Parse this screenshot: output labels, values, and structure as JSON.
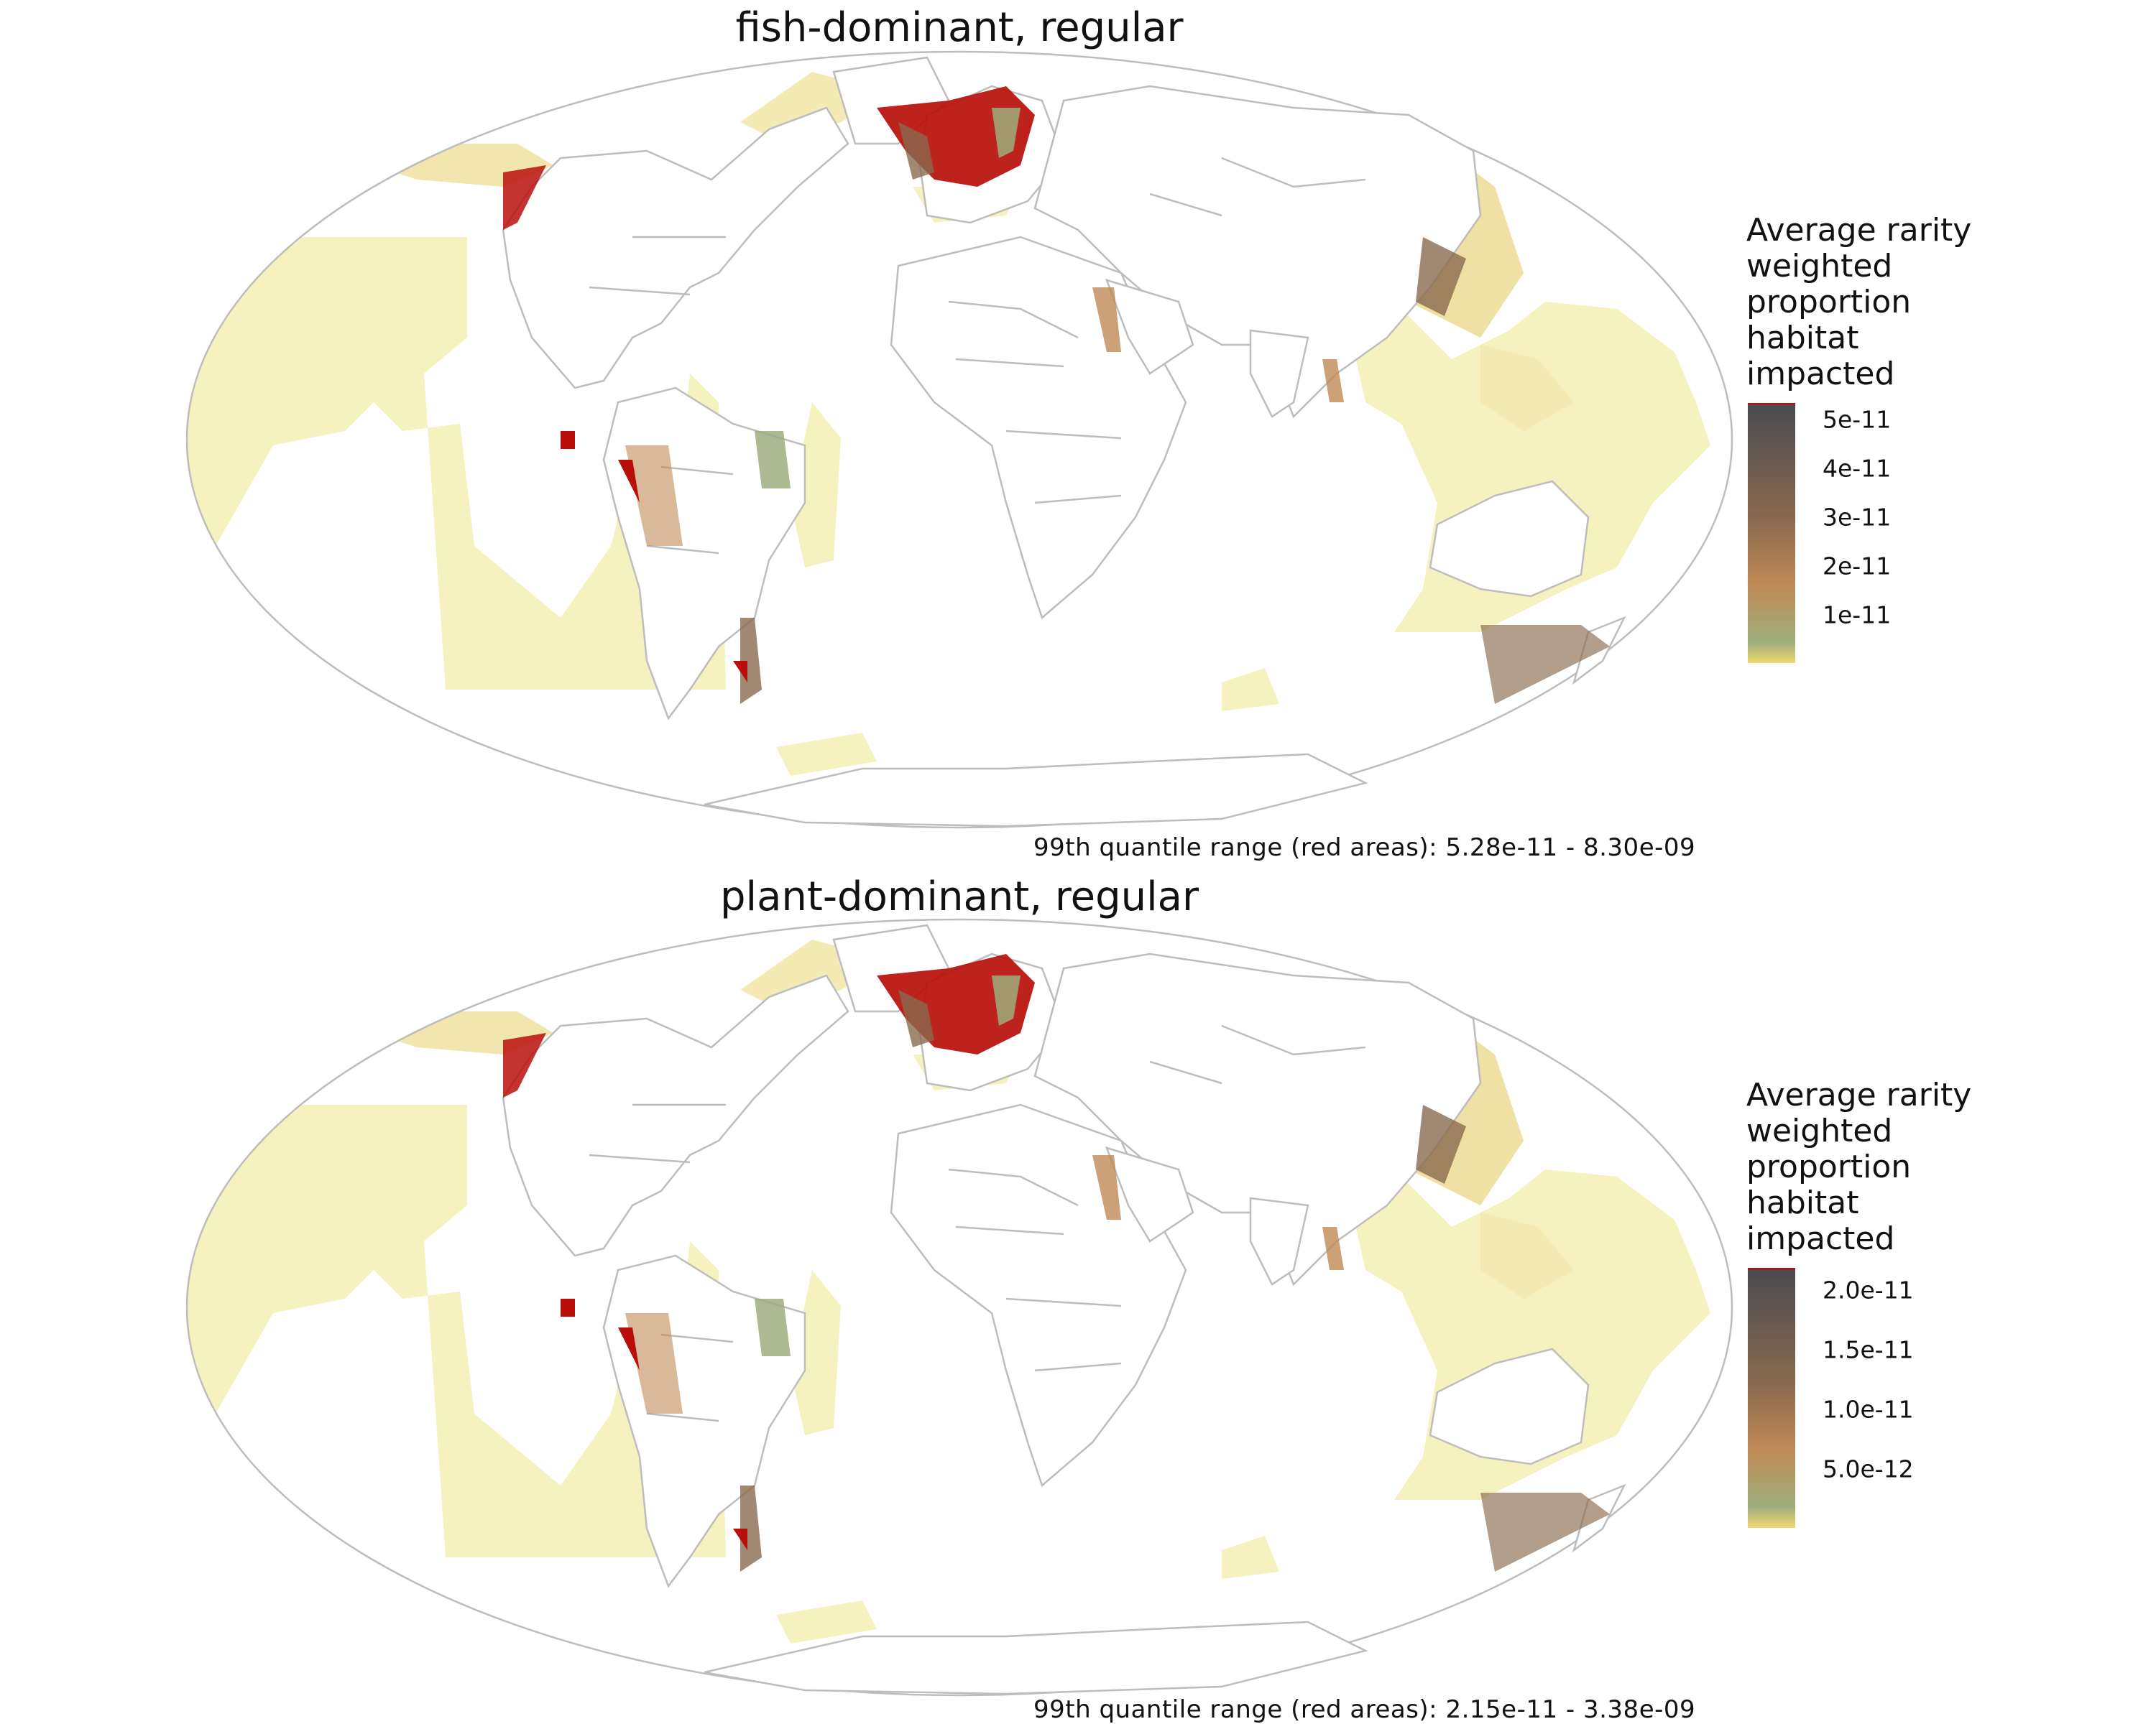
{
  "panels": [
    {
      "title": "fish-dominant, regular",
      "caption": "99th quantile range (red areas): 5.28e-11 - 8.30e-09",
      "legend": {
        "title": "Average rarity\nweighted\nproportion\nhabitat\nimpacted",
        "ticks": [
          "5e-11",
          "4e-11",
          "3e-11",
          "2e-11",
          "1e-11"
        ]
      }
    },
    {
      "title": "plant-dominant, regular",
      "caption": "99th quantile range (red areas): 2.15e-11 - 3.38e-09",
      "legend": {
        "title": "Average rarity\nweighted\nproportion\nhabitat\nimpacted",
        "ticks": [
          "2.0e-11",
          "1.5e-11",
          "1.0e-11",
          "5.0e-12"
        ]
      }
    }
  ],
  "colors": {
    "low": "#f6f2c0",
    "mid_green": "#9fae7e",
    "mid_orange": "#c08a55",
    "mid_brown": "#8a6a4f",
    "high": "#4a4a4f",
    "top_quantile_red": "#b80f0a",
    "border_gray": "#bdbdbd"
  }
}
